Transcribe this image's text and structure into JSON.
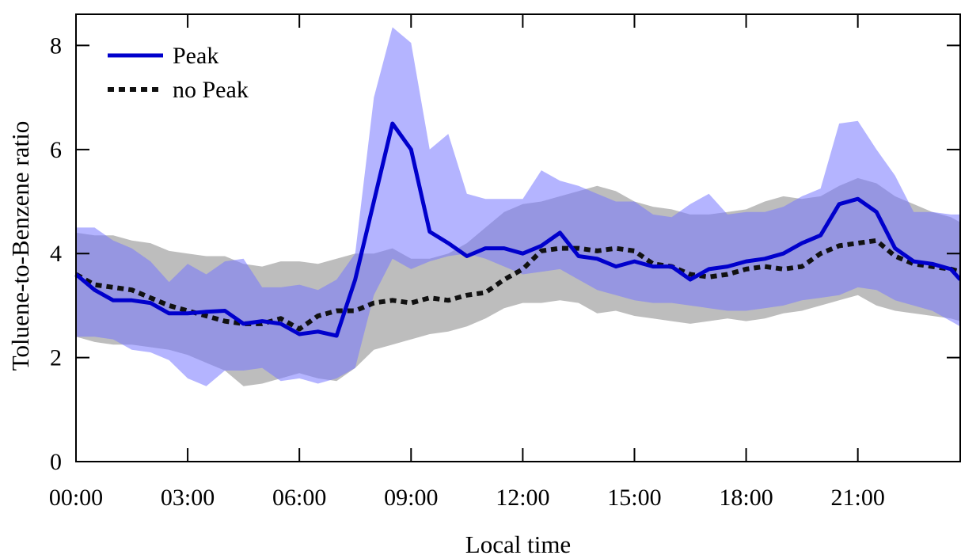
{
  "chart_data": {
    "type": "area",
    "xlabel": "Local time",
    "ylabel": "Toluene-to-Benzene ratio",
    "xlim": [
      0,
      23.75
    ],
    "ylim": [
      0,
      8.6
    ],
    "x_ticks": [
      {
        "value": 0,
        "label": "00:00"
      },
      {
        "value": 3,
        "label": "03:00"
      },
      {
        "value": 6,
        "label": "06:00"
      },
      {
        "value": 9,
        "label": "09:00"
      },
      {
        "value": 12,
        "label": "12:00"
      },
      {
        "value": 15,
        "label": "15:00"
      },
      {
        "value": 18,
        "label": "18:00"
      },
      {
        "value": 21,
        "label": "21:00"
      }
    ],
    "y_ticks": [
      {
        "value": 0,
        "label": "0"
      },
      {
        "value": 2,
        "label": "2"
      },
      {
        "value": 4,
        "label": "4"
      },
      {
        "value": 6,
        "label": "6"
      },
      {
        "value": 8,
        "label": "8"
      }
    ],
    "grid": false,
    "legend_position": "top-left",
    "legend": [
      {
        "label": "Peak",
        "style": "solid",
        "color": "#0000cc"
      },
      {
        "label": "no Peak",
        "style": "dotted",
        "color": "#111111"
      }
    ],
    "x": [
      0,
      0.5,
      1,
      1.5,
      2,
      2.5,
      3,
      3.5,
      4,
      4.5,
      5,
      5.5,
      6,
      6.5,
      7,
      7.5,
      8,
      8.5,
      9,
      9.5,
      10,
      10.5,
      11,
      11.5,
      12,
      12.5,
      13,
      13.5,
      14,
      14.5,
      15,
      15.5,
      16,
      16.5,
      17,
      17.5,
      18,
      18.5,
      19,
      19.5,
      20,
      20.5,
      21,
      21.5,
      22,
      22.5,
      23,
      23.5,
      23.75
    ],
    "series": [
      {
        "name": "Peak",
        "color": "#0000cc",
        "band_color": "#7777ff",
        "values": [
          3.6,
          3.3,
          3.1,
          3.1,
          3.05,
          2.85,
          2.85,
          2.88,
          2.9,
          2.65,
          2.7,
          2.65,
          2.45,
          2.5,
          2.42,
          3.5,
          5.0,
          6.5,
          6.0,
          4.42,
          4.2,
          3.95,
          4.1,
          4.1,
          4.0,
          4.15,
          4.4,
          3.95,
          3.9,
          3.75,
          3.85,
          3.75,
          3.75,
          3.5,
          3.7,
          3.75,
          3.85,
          3.9,
          4.0,
          4.2,
          4.35,
          4.95,
          5.05,
          4.8,
          4.1,
          3.85,
          3.8,
          3.7,
          3.5
        ],
        "lower": [
          2.4,
          2.4,
          2.35,
          2.15,
          2.1,
          1.95,
          1.6,
          1.45,
          1.75,
          1.75,
          1.8,
          1.55,
          1.6,
          1.5,
          1.6,
          1.8,
          3.2,
          3.9,
          3.7,
          3.85,
          3.95,
          4.0,
          3.9,
          3.75,
          3.6,
          3.65,
          3.7,
          3.5,
          3.3,
          3.2,
          3.1,
          3.05,
          3.05,
          3.0,
          2.95,
          2.9,
          2.9,
          2.95,
          3.0,
          3.1,
          3.15,
          3.2,
          3.35,
          3.3,
          3.1,
          3.0,
          2.9,
          2.7,
          2.6
        ],
        "upper": [
          4.5,
          4.5,
          4.25,
          4.1,
          3.85,
          3.45,
          3.8,
          3.6,
          3.85,
          3.9,
          3.35,
          3.35,
          3.4,
          3.3,
          3.5,
          4.0,
          7.0,
          8.35,
          8.05,
          6.0,
          6.3,
          5.15,
          5.05,
          5.05,
          5.05,
          5.6,
          5.4,
          5.3,
          5.15,
          5.0,
          5.0,
          4.75,
          4.7,
          4.95,
          5.15,
          4.75,
          4.8,
          4.8,
          4.9,
          5.1,
          5.25,
          6.5,
          6.55,
          6.0,
          5.5,
          4.8,
          4.8,
          4.75,
          4.75
        ]
      },
      {
        "name": "no Peak",
        "color": "#111111",
        "band_color": "#999999",
        "values": [
          3.6,
          3.4,
          3.35,
          3.3,
          3.15,
          3.0,
          2.9,
          2.8,
          2.7,
          2.65,
          2.65,
          2.75,
          2.55,
          2.8,
          2.9,
          2.9,
          3.05,
          3.1,
          3.05,
          3.15,
          3.1,
          3.2,
          3.25,
          3.5,
          3.7,
          4.05,
          4.1,
          4.1,
          4.05,
          4.1,
          4.05,
          3.8,
          3.75,
          3.6,
          3.55,
          3.6,
          3.7,
          3.75,
          3.7,
          3.75,
          4.0,
          4.15,
          4.2,
          4.25,
          3.95,
          3.8,
          3.75,
          3.7,
          3.65
        ],
        "lower": [
          2.4,
          2.3,
          2.25,
          2.25,
          2.2,
          2.15,
          2.05,
          1.9,
          1.75,
          1.45,
          1.5,
          1.6,
          1.7,
          1.6,
          1.55,
          1.8,
          2.15,
          2.25,
          2.35,
          2.45,
          2.5,
          2.6,
          2.75,
          2.95,
          3.05,
          3.05,
          3.1,
          3.05,
          2.85,
          2.9,
          2.8,
          2.75,
          2.7,
          2.65,
          2.7,
          2.75,
          2.7,
          2.75,
          2.85,
          2.9,
          3.0,
          3.1,
          3.2,
          3.0,
          2.9,
          2.85,
          2.8,
          2.75,
          2.7
        ],
        "upper": [
          4.4,
          4.35,
          4.35,
          4.25,
          4.2,
          4.05,
          4.0,
          3.95,
          3.95,
          3.8,
          3.75,
          3.85,
          3.85,
          3.8,
          3.9,
          4.0,
          4.0,
          4.1,
          3.9,
          3.9,
          4.0,
          4.2,
          4.5,
          4.8,
          4.95,
          5.0,
          5.1,
          5.2,
          5.3,
          5.2,
          5.0,
          4.9,
          4.85,
          4.75,
          4.75,
          4.8,
          4.85,
          5.0,
          5.1,
          5.05,
          5.1,
          5.3,
          5.45,
          5.35,
          5.1,
          4.95,
          4.8,
          4.7,
          4.6
        ]
      }
    ]
  }
}
